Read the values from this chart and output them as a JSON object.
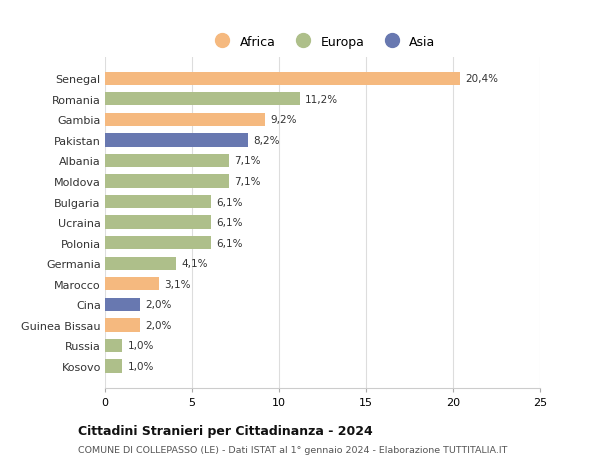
{
  "countries": [
    "Senegal",
    "Romania",
    "Gambia",
    "Pakistan",
    "Albania",
    "Moldova",
    "Bulgaria",
    "Ucraina",
    "Polonia",
    "Germania",
    "Marocco",
    "Cina",
    "Guinea Bissau",
    "Russia",
    "Kosovo"
  ],
  "values": [
    20.4,
    11.2,
    9.2,
    8.2,
    7.1,
    7.1,
    6.1,
    6.1,
    6.1,
    4.1,
    3.1,
    2.0,
    2.0,
    1.0,
    1.0
  ],
  "labels": [
    "20,4%",
    "11,2%",
    "9,2%",
    "8,2%",
    "7,1%",
    "7,1%",
    "6,1%",
    "6,1%",
    "6,1%",
    "4,1%",
    "3,1%",
    "2,0%",
    "2,0%",
    "1,0%",
    "1,0%"
  ],
  "continents": [
    "Africa",
    "Europa",
    "Africa",
    "Asia",
    "Europa",
    "Europa",
    "Europa",
    "Europa",
    "Europa",
    "Europa",
    "Africa",
    "Asia",
    "Africa",
    "Europa",
    "Europa"
  ],
  "colors": {
    "Africa": "#F5B97F",
    "Europa": "#AEBF8A",
    "Asia": "#6878B0"
  },
  "legend_labels": [
    "Africa",
    "Europa",
    "Asia"
  ],
  "xlim": [
    0,
    25
  ],
  "xticks": [
    0,
    5,
    10,
    15,
    20,
    25
  ],
  "title": "Cittadini Stranieri per Cittadinanza - 2024",
  "subtitle": "COMUNE DI COLLEPASSO (LE) - Dati ISTAT al 1° gennaio 2024 - Elaborazione TUTTITALIA.IT",
  "background_color": "#ffffff",
  "bar_height": 0.65
}
